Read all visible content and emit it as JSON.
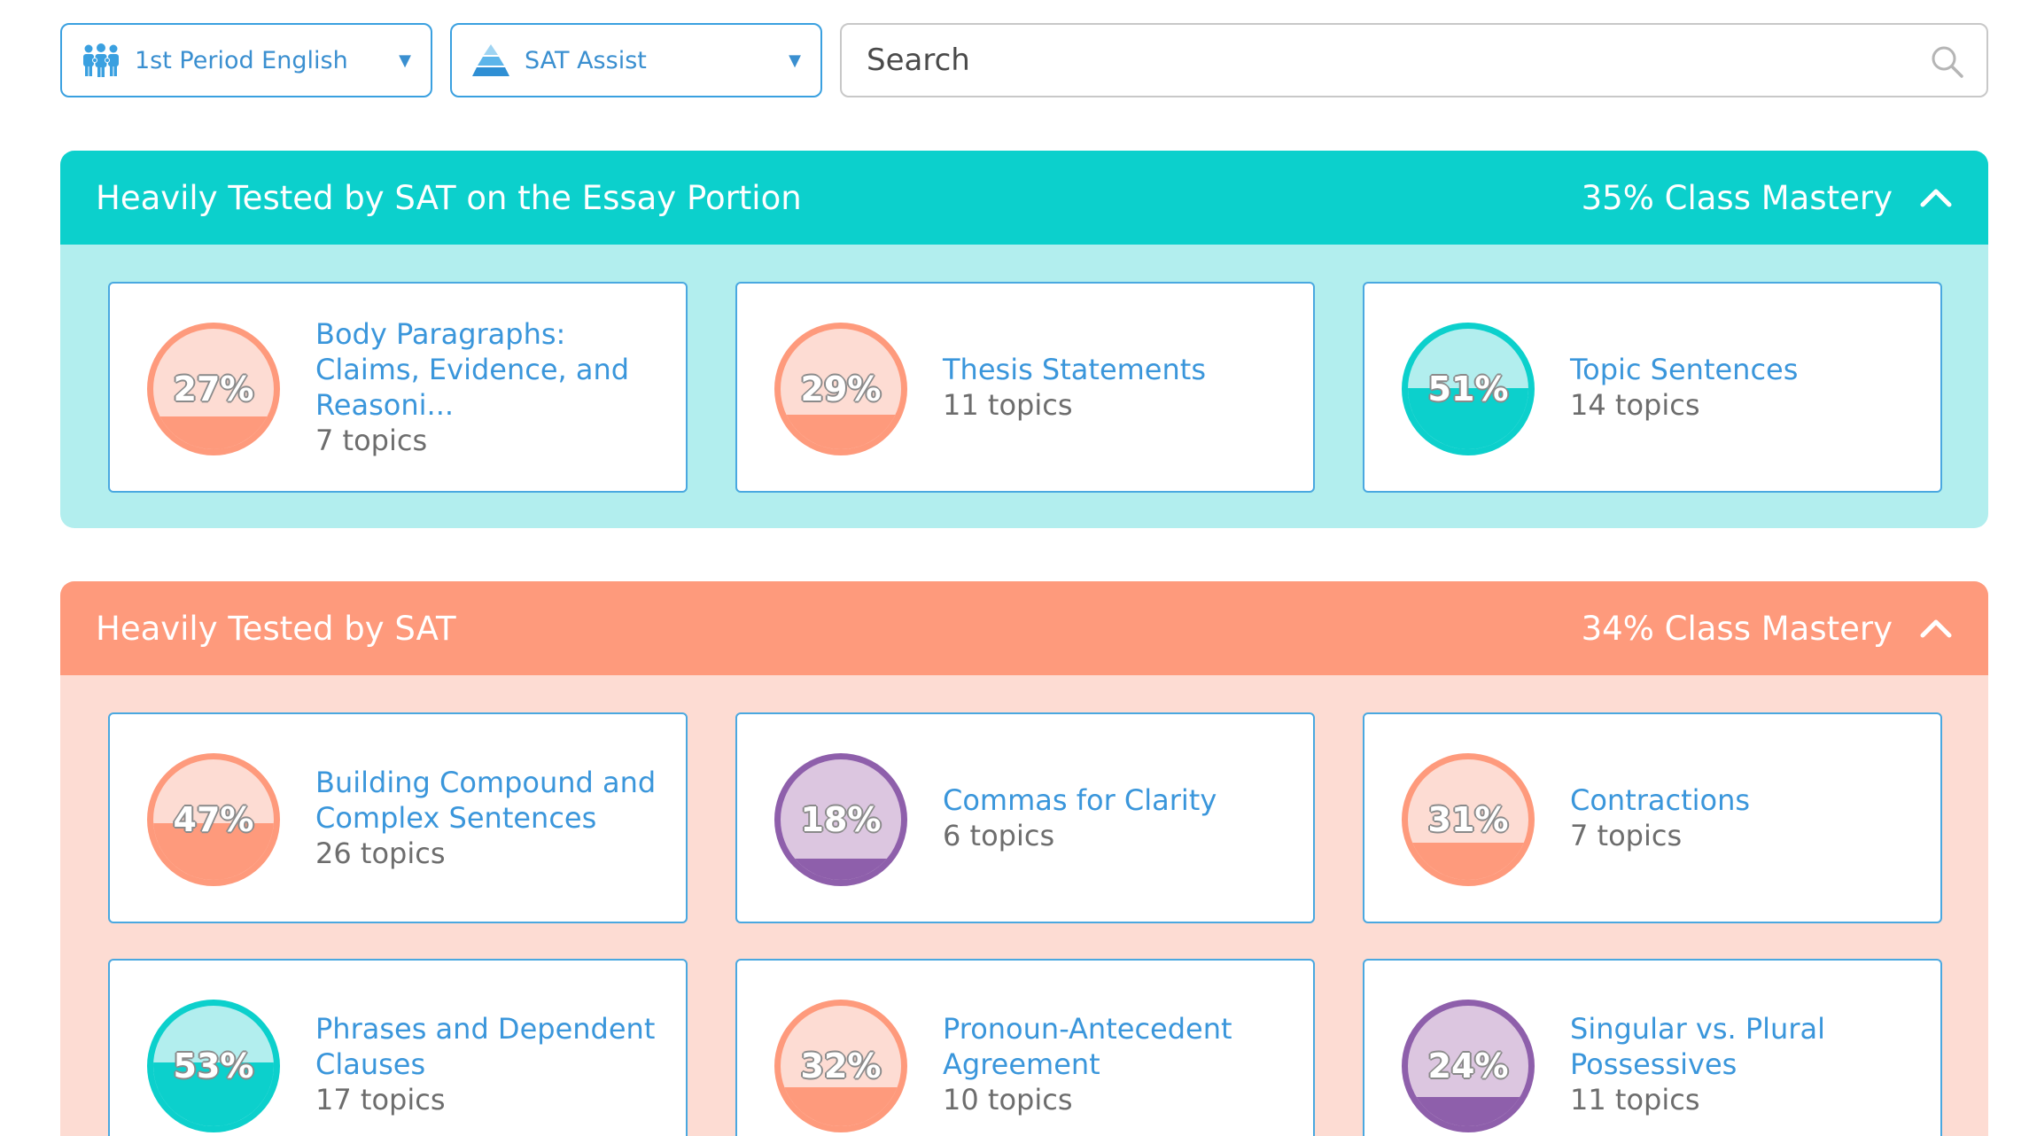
{
  "filters": {
    "class_select": {
      "label": "1st Period English",
      "icon": "people-group-icon"
    },
    "program_select": {
      "label": "SAT Assist",
      "icon": "pyramid-icon"
    },
    "search": {
      "placeholder": "Search"
    }
  },
  "colors": {
    "teal": "#0cd0cc",
    "teal_light": "#b2eeee",
    "coral": "#fe9a7c",
    "coral_light": "#fddcd3",
    "purple": "#8e5fab",
    "purple_light": "#dcc6e0",
    "link_blue": "#3a96db"
  },
  "sections": [
    {
      "title": "Heavily Tested by SAT on the Essay Portion",
      "mastery": "35% Class Mastery",
      "cards": [
        {
          "title": "Body Paragraphs: Claims, Evidence, and Reasoni...",
          "subtitle": "7 topics",
          "percent_label": "27%",
          "mastery_fraction": 0.27,
          "tone": "coral"
        },
        {
          "title": "Thesis Statements",
          "subtitle": "11 topics",
          "percent_label": "29%",
          "mastery_fraction": 0.29,
          "tone": "coral"
        },
        {
          "title": "Topic Sentences",
          "subtitle": "14 topics",
          "percent_label": "51%",
          "mastery_fraction": 0.51,
          "tone": "teal"
        }
      ]
    },
    {
      "title": "Heavily Tested by SAT",
      "mastery": "34% Class Mastery",
      "cards": [
        {
          "title": "Building Compound and Complex Sentences",
          "subtitle": "26 topics",
          "percent_label": "47%",
          "mastery_fraction": 0.47,
          "tone": "coral"
        },
        {
          "title": "Commas for Clarity",
          "subtitle": "6 topics",
          "percent_label": "18%",
          "mastery_fraction": 0.18,
          "tone": "purple"
        },
        {
          "title": "Contractions",
          "subtitle": "7 topics",
          "percent_label": "31%",
          "mastery_fraction": 0.31,
          "tone": "coral"
        },
        {
          "title": "Phrases and Dependent Clauses",
          "subtitle": "17 topics",
          "percent_label": "53%",
          "mastery_fraction": 0.53,
          "tone": "teal"
        },
        {
          "title": "Pronoun-Antecedent Agreement",
          "subtitle": "10 topics",
          "percent_label": "32%",
          "mastery_fraction": 0.32,
          "tone": "coral"
        },
        {
          "title": "Singular vs. Plural Possessives",
          "subtitle": "11 topics",
          "percent_label": "24%",
          "mastery_fraction": 0.24,
          "tone": "purple"
        }
      ]
    }
  ]
}
